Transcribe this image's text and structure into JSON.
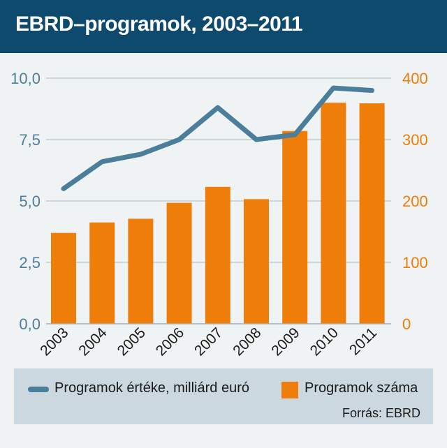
{
  "header": {
    "title": "EBRD–programok, 2003–2011"
  },
  "legend": {
    "line_label": "Programok értéke, milliárd euró",
    "bar_label": "Programok száma"
  },
  "source": "Forrás: EBRD",
  "colors": {
    "line": "#4a7e9b",
    "bars": "#ef7d0a",
    "header": "#0e4a6e",
    "left_axis": "#4a7e9b",
    "right_axis": "#ef7d0a"
  },
  "chart_data": {
    "type": "bar",
    "title": "EBRD–programok, 2003–2011",
    "categories": [
      "2003",
      "2004",
      "2005",
      "2006",
      "2007",
      "2008",
      "2009",
      "2010",
      "2011"
    ],
    "left_axis": {
      "ticks": [
        "0,0",
        "2,5",
        "5,0",
        "7,5",
        "10,0"
      ],
      "range": [
        0,
        10
      ]
    },
    "right_axis": {
      "ticks": [
        "0",
        "100",
        "200",
        "300",
        "400"
      ],
      "range": [
        0,
        400
      ]
    },
    "series": [
      {
        "name": "Programok száma",
        "type": "bar",
        "axis": "right",
        "values": [
          148,
          165,
          171,
          197,
          223,
          203,
          314,
          360,
          359
        ]
      },
      {
        "name": "Programok értéke, milliárd euró",
        "type": "line",
        "axis": "left",
        "values": [
          5.5,
          6.6,
          6.9,
          7.5,
          8.8,
          7.5,
          7.7,
          9.6,
          9.5
        ]
      }
    ],
    "grid": true,
    "legend_position": "bottom"
  }
}
